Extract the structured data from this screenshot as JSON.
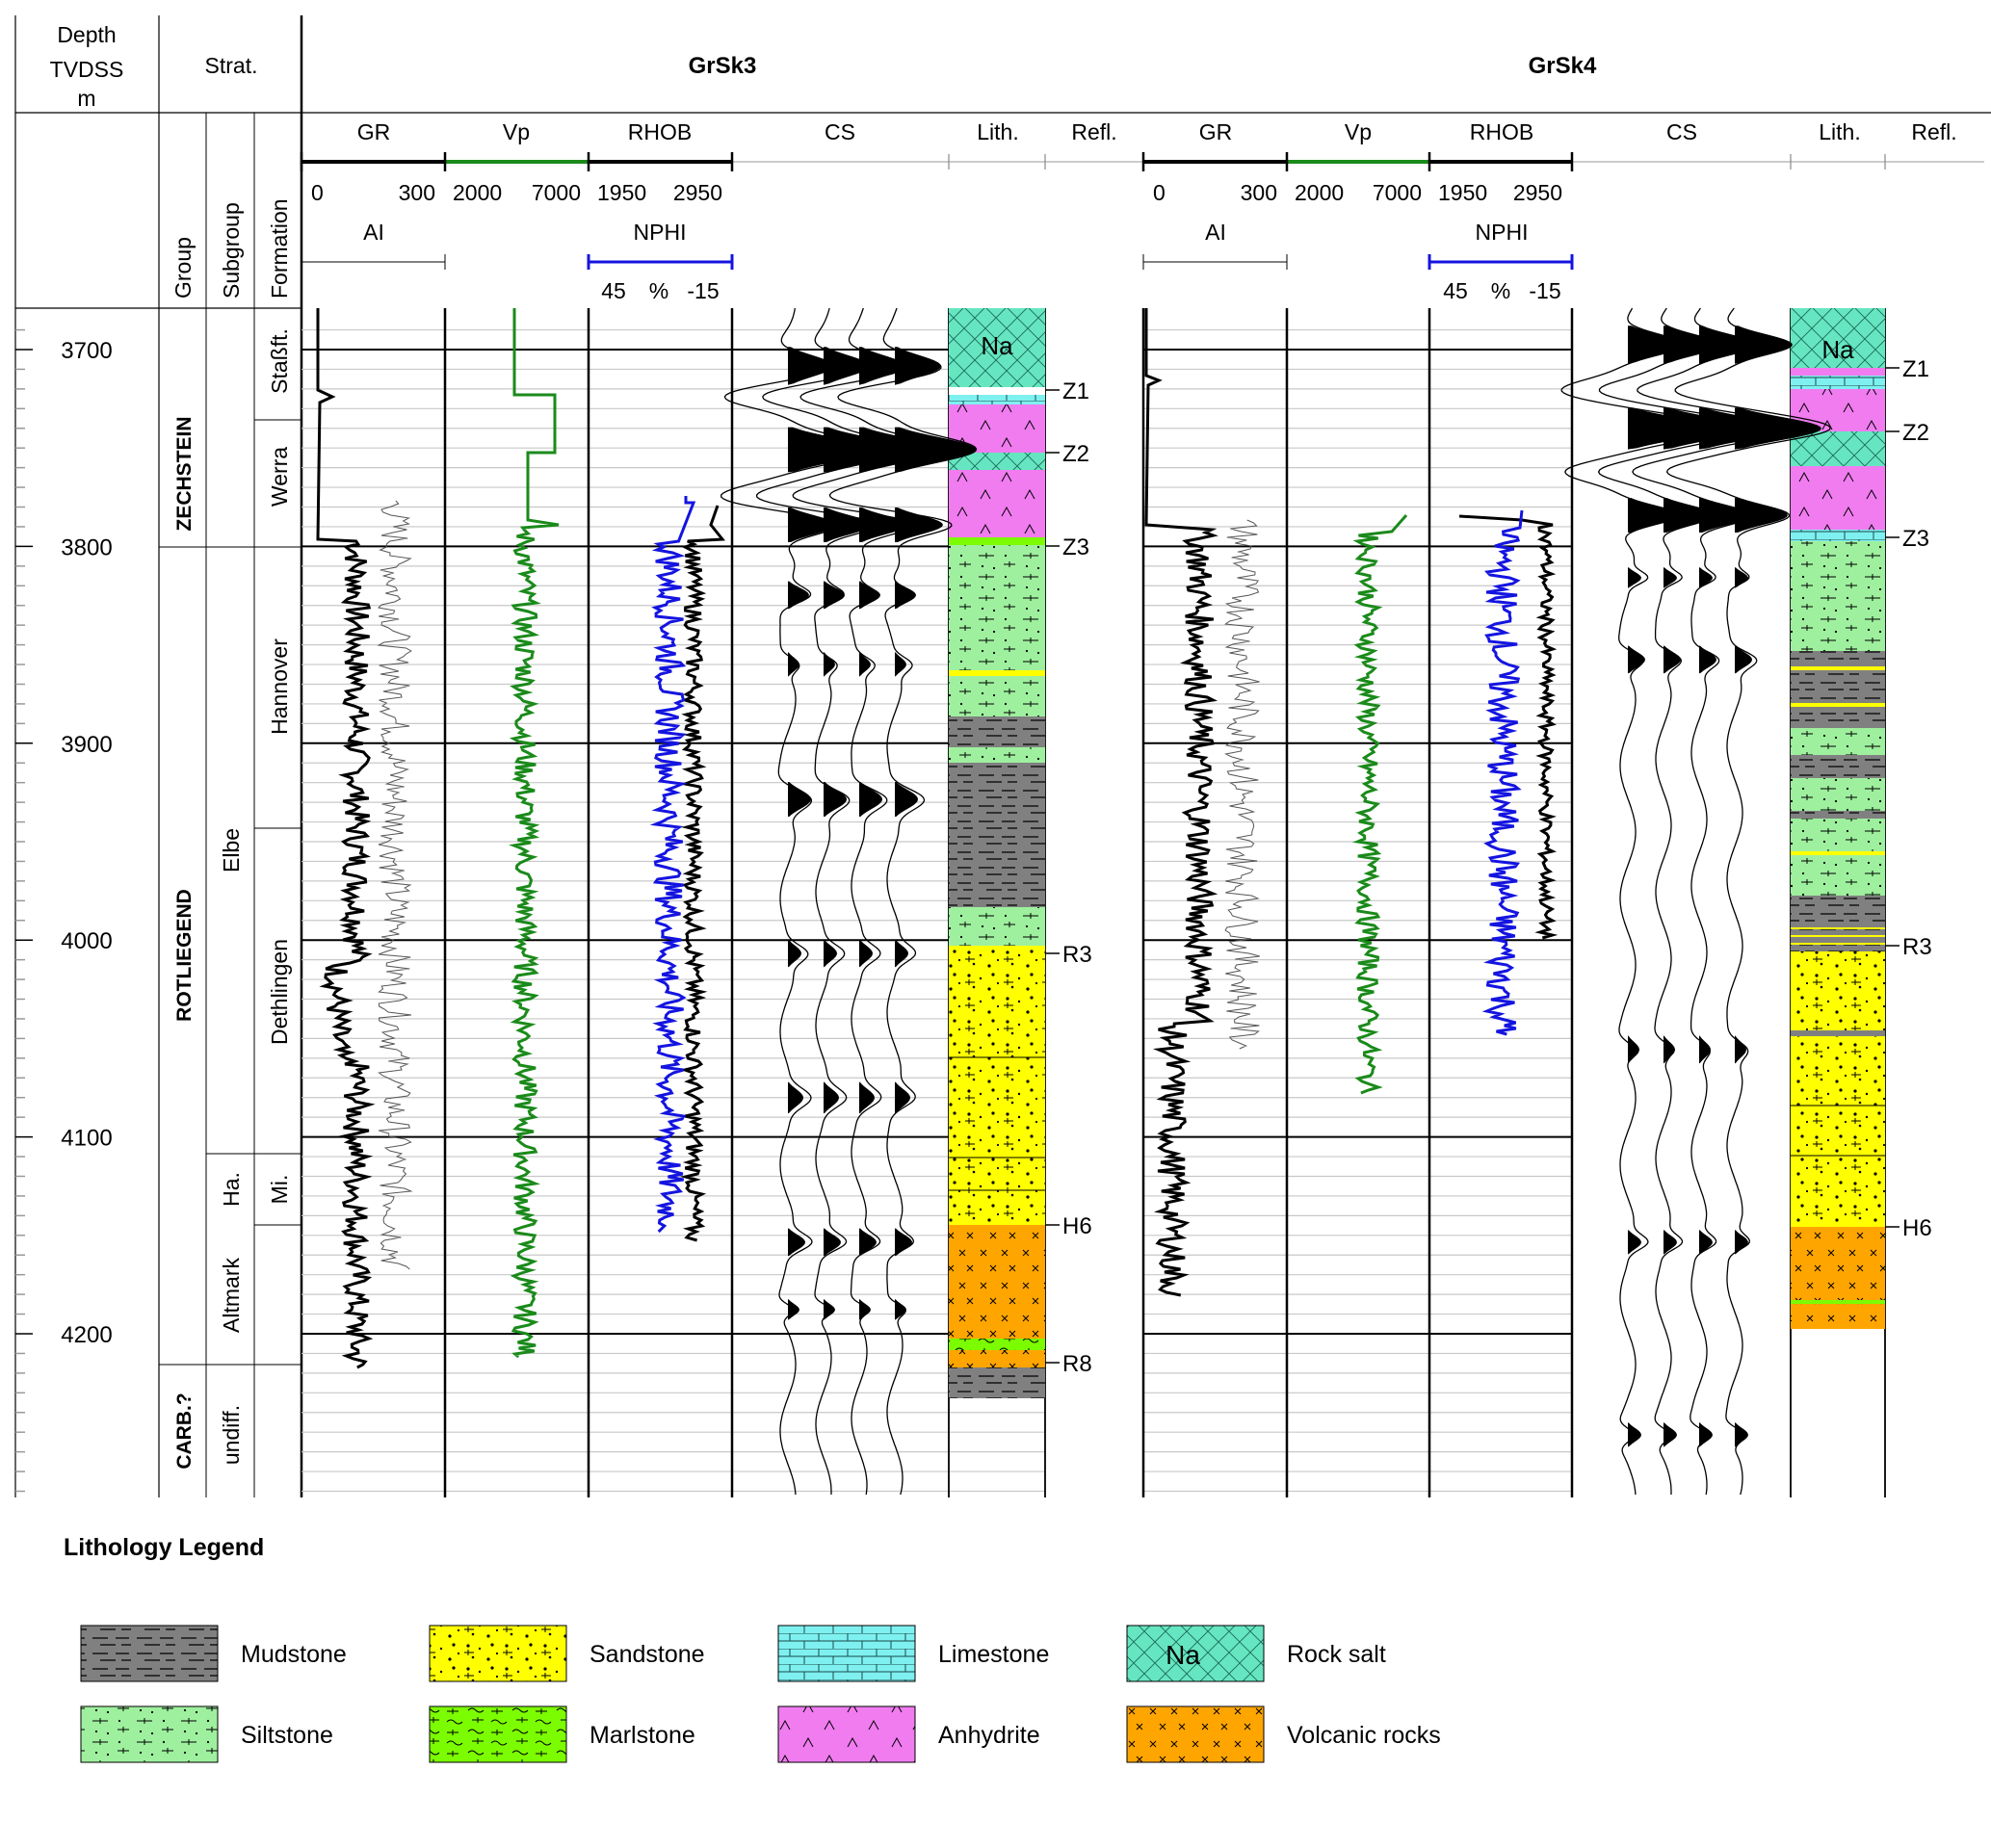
{
  "header": {
    "depth_line1": "Depth",
    "depth_line2": "TVDSS",
    "depth_line3": "m",
    "strat": "Strat.",
    "wells": [
      {
        "name": "GrSk3",
        "tracks": [
          "GR",
          "Vp",
          "RHOB",
          "CS",
          "Lith.",
          "Refl."
        ],
        "scales": {
          "gr": [
            "0",
            "300"
          ],
          "vp": [
            "2000",
            "7000"
          ],
          "rhob": [
            "1950",
            "2950"
          ]
        },
        "ai": "AI",
        "nphi": "NPHI",
        "nphi_scale": [
          "45",
          "%",
          "-15"
        ]
      },
      {
        "name": "GrSk4",
        "tracks": [
          "GR",
          "Vp",
          "RHOB",
          "CS",
          "Lith.",
          "Refl."
        ],
        "scales": {
          "gr": [
            "0",
            "300"
          ],
          "vp": [
            "2000",
            "7000"
          ],
          "rhob": [
            "1950",
            "2950"
          ]
        },
        "ai": "AI",
        "nphi": "NPHI",
        "nphi_scale": [
          "45",
          "%",
          "-15"
        ]
      }
    ],
    "strat_columns": [
      "Group",
      "Subgroup",
      "Formation"
    ]
  },
  "depth_ticks": [
    "3700",
    "3800",
    "3900",
    "4000",
    "4100",
    "4200"
  ],
  "stratigraphy": {
    "groups": [
      "ZECHSTEIN",
      "ROTLIEGEND",
      "CARB.?"
    ],
    "subgroups": [
      "Elbe",
      "Ha.",
      "Altmark",
      "undiff."
    ],
    "formations": [
      "Staßft.",
      "Werra",
      "Hannover",
      "Dethlingen",
      "Mi."
    ]
  },
  "reflectors": {
    "grsk3": [
      "Z1",
      "Z2",
      "Z3",
      "R3",
      "H6",
      "R8"
    ],
    "grsk4": [
      "Z1",
      "Z2",
      "Z3",
      "R3",
      "H6"
    ]
  },
  "salt_label": "Na",
  "colors": {
    "gr": "#000000",
    "vp": "#1a8a1a",
    "rhob": "#000000",
    "nphi": "#1414e0",
    "mudstone": "#808080",
    "siltstone": "#9ef09e",
    "sandstone": "#ffff00",
    "marlstone": "#7cfc00",
    "limestone": "#7ff0f0",
    "anhydrite": "#f07cf0",
    "rocksalt": "#66e6c0",
    "volcanic": "#ffa500"
  },
  "legend": {
    "title": "Lithology Legend",
    "items": [
      {
        "key": "mudstone",
        "label": "Mudstone"
      },
      {
        "key": "sandstone",
        "label": "Sandstone"
      },
      {
        "key": "limestone",
        "label": "Limestone"
      },
      {
        "key": "rocksalt",
        "label": "Rock salt"
      },
      {
        "key": "siltstone",
        "label": "Siltstone"
      },
      {
        "key": "marlstone",
        "label": "Marlstone"
      },
      {
        "key": "anhydrite",
        "label": "Anhydrite"
      },
      {
        "key": "volcanic",
        "label": "Volcanic rocks"
      }
    ]
  }
}
